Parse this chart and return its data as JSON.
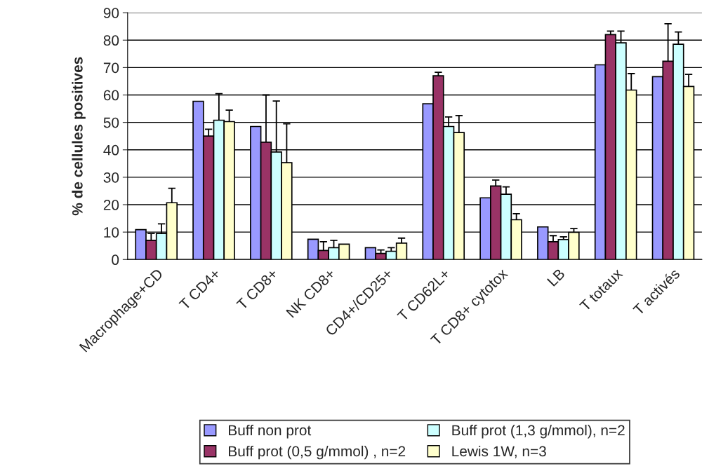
{
  "chart_data": {
    "type": "bar",
    "ylabel": "% de cellules positives",
    "categories": [
      "Macrophage+CD",
      "T CD4+",
      "T CD8+",
      "NK CD8+",
      "CD4+/CD25+",
      "T CD62L+",
      "T CD8+ cytotox",
      "LB",
      "T totaux",
      "T activés"
    ],
    "series": [
      {
        "name": "Buff non prot",
        "color": "#9999ff",
        "values": [
          10.9,
          57.7,
          48.5,
          7.4,
          4.3,
          56.8,
          22.5,
          11.9,
          71,
          66.7
        ]
      },
      {
        "name": "Buff prot (0,5 g/mmol) , n=2",
        "color": "#993366",
        "values": [
          7,
          45,
          42.8,
          3.3,
          2.2,
          67,
          26.8,
          6.5,
          82,
          72.3
        ],
        "errors": [
          [
            7,
            9.5
          ],
          [
            45,
            47.5
          ],
          [
            42.8,
            60
          ],
          [
            3.3,
            6.5
          ],
          [
            2.2,
            3.5
          ],
          [
            67,
            68.3
          ],
          [
            26.8,
            29
          ],
          [
            6.5,
            8.7
          ],
          [
            82,
            83.3
          ],
          [
            72.3,
            86
          ]
        ]
      },
      {
        "name": "Buff prot (1,3 g/mmol), n=2",
        "color": "#ccffff",
        "values": [
          9.5,
          50.8,
          39.2,
          4.3,
          3,
          48.5,
          23.8,
          7.3,
          79,
          78.5
        ],
        "errors": [
          [
            9.5,
            13
          ],
          [
            50.8,
            60.5
          ],
          [
            39.2,
            57.8
          ],
          [
            4.3,
            7
          ],
          [
            3,
            4.3
          ],
          [
            48.5,
            52
          ],
          [
            23.8,
            26.5
          ],
          [
            7.3,
            8.3
          ],
          [
            79,
            83.3
          ],
          [
            78.5,
            83
          ]
        ]
      },
      {
        "name": "Lewis 1W, n=3",
        "color": "#ffffcc",
        "values": [
          20.7,
          50.3,
          35.3,
          5.6,
          6,
          46.3,
          14.5,
          9.9,
          61.8,
          63.1
        ],
        "errors": [
          [
            20.7,
            26
          ],
          [
            50.3,
            54.5
          ],
          [
            35.3,
            49.5
          ],
          null,
          [
            6,
            7.8
          ],
          [
            46.3,
            52.5
          ],
          [
            14.5,
            16.7
          ],
          [
            9.9,
            11.3
          ],
          [
            61.8,
            67.8
          ],
          [
            63.1,
            67.5
          ]
        ]
      }
    ],
    "ylim": [
      0,
      90
    ],
    "yticks": [
      0,
      10,
      20,
      30,
      40,
      50,
      60,
      70,
      80,
      90
    ],
    "grid": "y",
    "legend": "bottom"
  }
}
